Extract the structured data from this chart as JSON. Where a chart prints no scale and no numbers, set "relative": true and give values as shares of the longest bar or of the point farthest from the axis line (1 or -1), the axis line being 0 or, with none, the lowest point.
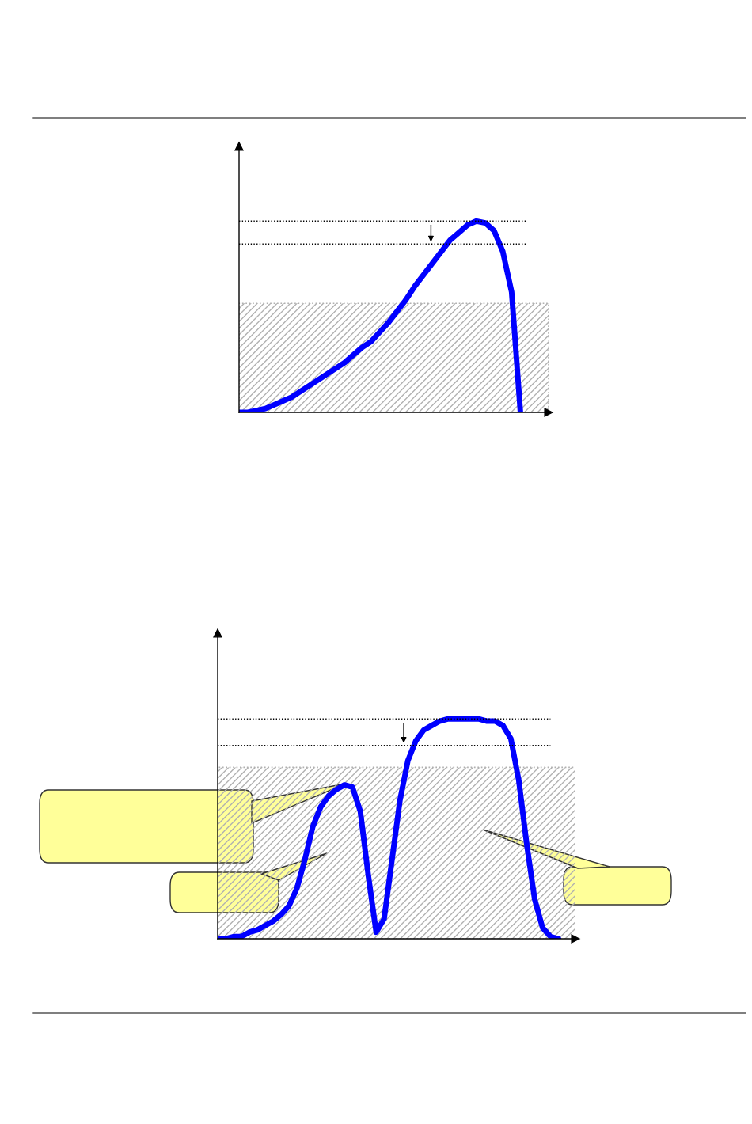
{
  "chart_data": [
    {
      "type": "line",
      "relative": true,
      "categories": [
        null,
        null,
        null,
        null,
        null,
        null,
        null,
        null,
        null,
        null,
        null,
        null,
        null,
        null,
        null,
        null,
        null,
        null,
        null,
        null,
        null,
        null,
        null,
        null,
        null,
        null,
        null,
        null,
        null,
        null,
        null,
        null,
        null
      ],
      "series": [
        {
          "color": "#0000ff",
          "values": [
            0,
            0.0,
            0.01,
            0.02,
            0.04,
            0.06,
            0.08,
            0.11,
            0.14,
            0.17,
            0.2,
            0.23,
            0.26,
            0.3,
            0.34,
            0.37,
            0.42,
            0.47,
            0.53,
            0.59,
            0.66,
            0.72,
            0.78,
            0.84,
            0.9,
            0.94,
            0.98,
            1.0,
            0.99,
            0.95,
            0.84,
            0.63,
            0
          ]
        }
      ],
      "ref_lines": [
        {
          "axis": "y",
          "value": 1.0,
          "line_style": "dotted",
          "color": "#000000"
        },
        {
          "axis": "y",
          "value": 0.88,
          "line_style": "dotted",
          "color": "#000000"
        }
      ],
      "bands": [
        {
          "axis": "y",
          "from": 0,
          "to": 0.57,
          "color": "#b0b0b0"
        }
      ]
    },
    {
      "type": "line",
      "relative": true,
      "categories": [
        null,
        null,
        null,
        null,
        null,
        null,
        null,
        null,
        null,
        null,
        null,
        null,
        null,
        null,
        null,
        null,
        null,
        null,
        null,
        null,
        null,
        null,
        null,
        null,
        null,
        null,
        null,
        null,
        null,
        null,
        null,
        null,
        null,
        null,
        null,
        null,
        null,
        null,
        null,
        null,
        null,
        null,
        null,
        null
      ],
      "series": [
        {
          "color": "#0000ff",
          "values": [
            0,
            0.0,
            0.01,
            0.01,
            0.03,
            0.04,
            0.06,
            0.08,
            0.11,
            0.15,
            0.23,
            0.36,
            0.51,
            0.6,
            0.65,
            0.68,
            0.7,
            0.69,
            0.58,
            0.29,
            0.03,
            0.09,
            0.36,
            0.63,
            0.81,
            0.9,
            0.95,
            0.97,
            0.99,
            1.0,
            1.0,
            1.0,
            1.0,
            1.0,
            0.99,
            0.99,
            0.97,
            0.91,
            0.72,
            0.43,
            0.18,
            0.05,
            0.01,
            0.0
          ]
        }
      ],
      "ref_lines": [
        {
          "axis": "y",
          "value": 1.0,
          "line_style": "dotted",
          "color": "#000000"
        },
        {
          "axis": "y",
          "value": 0.88,
          "line_style": "dotted",
          "color": "#000000"
        }
      ],
      "bands": [
        {
          "axis": "y",
          "from": 0,
          "to": 0.78,
          "color": "#b0b0b0"
        }
      ]
    }
  ]
}
